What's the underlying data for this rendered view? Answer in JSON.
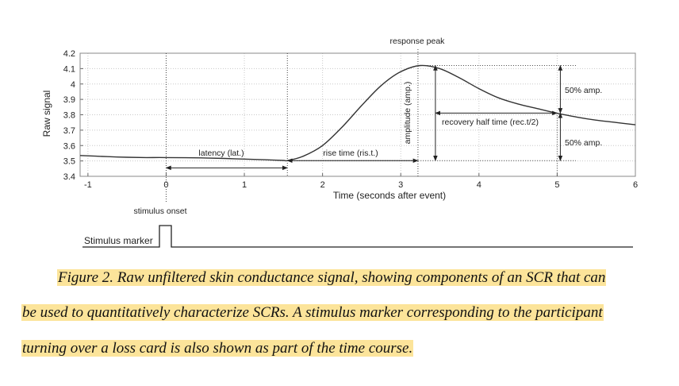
{
  "chart_data": {
    "type": "line",
    "title": "",
    "xlabel": "Time (seconds after event)",
    "ylabel": "Raw signal",
    "xlim": [
      -1.1,
      6
    ],
    "ylim": [
      3.4,
      4.2
    ],
    "x_ticks": [
      -1,
      0,
      1,
      2,
      3,
      4,
      5,
      6
    ],
    "y_ticks": [
      "3.4",
      "3.5",
      "3.6",
      "3.7",
      "3.8",
      "3.9",
      "4",
      "4.1",
      "4.2"
    ],
    "grid": true,
    "series": [
      {
        "x": [
          -1.1,
          -0.75,
          -0.5,
          -0.25,
          0,
          0.25,
          0.5,
          0.75,
          1.0,
          1.25,
          1.5,
          1.55,
          1.75,
          2.0,
          2.25,
          2.5,
          2.75,
          3.0,
          3.25,
          3.5,
          3.75,
          4.0,
          4.25,
          4.5,
          4.75,
          5.0,
          5.25,
          5.5,
          5.75,
          6.0
        ],
        "y": [
          3.535,
          3.528,
          3.524,
          3.522,
          3.522,
          3.521,
          3.519,
          3.516,
          3.512,
          3.508,
          3.503,
          3.502,
          3.53,
          3.6,
          3.72,
          3.86,
          3.99,
          4.08,
          4.12,
          4.1,
          4.04,
          3.97,
          3.91,
          3.87,
          3.84,
          3.81,
          3.785,
          3.765,
          3.75,
          3.735
        ]
      }
    ],
    "annotations": {
      "response_peak": "response peak",
      "latency": "latency (lat.)",
      "rise_time": "rise time (ris.t.)",
      "amplitude": "amplitude (amp.)",
      "half_amp_upper": "50% amp.",
      "half_amp_lower": "50% amp.",
      "recovery": "recovery half time (rec.t/2)",
      "stimulus_onset": "stimulus onset",
      "stimulus_marker": "Stimulus marker"
    },
    "events": {
      "onset": 0,
      "scr_start": 1.55,
      "peak": 3.22,
      "peak_value": 4.12,
      "baseline": 3.502,
      "half_recovery": 5.0,
      "half_value": 3.811
    }
  },
  "caption": {
    "line1": "Figure 2. Raw unfiltered skin conductance signal, showing components of an SCR that can",
    "line2": "be used to quantitatively characterize SCRs. A stimulus marker corresponding to the participant",
    "line3": "turning over a loss card is also shown as part of the time course."
  }
}
